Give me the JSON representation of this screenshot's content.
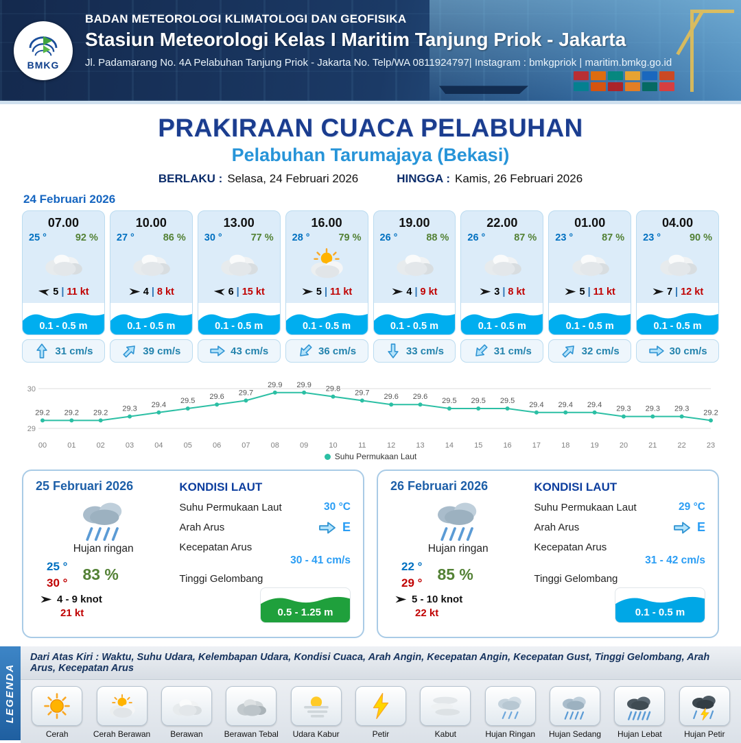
{
  "header": {
    "org": "BADAN METEOROLOGI KLIMATOLOGI DAN GEOFISIKA",
    "station": "Stasiun Meteorologi Kelas I Maritim Tanjung Priok - Jakarta",
    "address": "Jl. Padamarang No. 4A Pelabuhan Tanjung Priok - Jakarta No. Telp/WA 0811924797| Instagram : bmkgpriok | maritim.bmkg.go.id",
    "logo_label": "BMKG"
  },
  "title": {
    "main": "PRAKIRAAN CUACA PELABUHAN",
    "port": "Pelabuhan Tarumajaya (Bekasi)",
    "valid_from_label": "BERLAKU :",
    "valid_from": "Selasa, 24 Februari 2026",
    "valid_to_label": "HINGGA :",
    "valid_to": "Kamis, 26 Februari 2026"
  },
  "labels": {
    "sep": "|"
  },
  "forecast_date": "24 Februari 2026",
  "forecast_cards": [
    {
      "time": "07.00",
      "temp": "25 °",
      "humidity": "92 %",
      "weather_icon": "cloudy",
      "wind_dir_deg": 190,
      "wind_speed": "5",
      "gust": "11 kt",
      "wave": "0.1 - 0.5 m",
      "current_dir_deg": -90,
      "current_speed": "31 cm/s"
    },
    {
      "time": "10.00",
      "temp": "27 °",
      "humidity": "86 %",
      "weather_icon": "cloudy",
      "wind_dir_deg": 0,
      "wind_speed": "4",
      "gust": "8 kt",
      "wave": "0.1 - 0.5 m",
      "current_dir_deg": -45,
      "current_speed": "39 cm/s"
    },
    {
      "time": "13.00",
      "temp": "30 °",
      "humidity": "77 %",
      "weather_icon": "cloudy",
      "wind_dir_deg": 185,
      "wind_speed": "6",
      "gust": "15 kt",
      "wave": "0.1 - 0.5 m",
      "current_dir_deg": 0,
      "current_speed": "43 cm/s"
    },
    {
      "time": "16.00",
      "temp": "28 °",
      "humidity": "79 %",
      "weather_icon": "sun-cloud",
      "wind_dir_deg": 0,
      "wind_speed": "5",
      "gust": "11 kt",
      "wave": "0.1 - 0.5 m",
      "current_dir_deg": 135,
      "current_speed": "36 cm/s"
    },
    {
      "time": "19.00",
      "temp": "26 °",
      "humidity": "88 %",
      "weather_icon": "cloudy",
      "wind_dir_deg": 0,
      "wind_speed": "4",
      "gust": "9 kt",
      "wave": "0.1 - 0.5 m",
      "current_dir_deg": 90,
      "current_speed": "33 cm/s"
    },
    {
      "time": "22.00",
      "temp": "26 °",
      "humidity": "87 %",
      "weather_icon": "cloudy",
      "wind_dir_deg": 0,
      "wind_speed": "3",
      "gust": "8 kt",
      "wave": "0.1 - 0.5 m",
      "current_dir_deg": 135,
      "current_speed": "31 cm/s"
    },
    {
      "time": "01.00",
      "temp": "23 °",
      "humidity": "87 %",
      "weather_icon": "cloudy",
      "wind_dir_deg": 0,
      "wind_speed": "5",
      "gust": "11 kt",
      "wave": "0.1 - 0.5 m",
      "current_dir_deg": -45,
      "current_speed": "32 cm/s"
    },
    {
      "time": "04.00",
      "temp": "23 °",
      "humidity": "90 %",
      "weather_icon": "cloudy",
      "wind_dir_deg": 0,
      "wind_speed": "7",
      "gust": "12 kt",
      "wave": "0.1 - 0.5 m",
      "current_dir_deg": 0,
      "current_speed": "30 cm/s"
    }
  ],
  "chart_data": {
    "type": "line",
    "series_name": "Suhu Permukaan Laut",
    "x": [
      "00",
      "01",
      "02",
      "03",
      "04",
      "05",
      "06",
      "07",
      "08",
      "09",
      "10",
      "11",
      "12",
      "13",
      "14",
      "15",
      "16",
      "17",
      "18",
      "19",
      "20",
      "21",
      "22",
      "23"
    ],
    "values": [
      29.2,
      29.2,
      29.2,
      29.3,
      29.4,
      29.5,
      29.6,
      29.7,
      29.9,
      29.9,
      29.8,
      29.7,
      29.6,
      29.6,
      29.5,
      29.5,
      29.5,
      29.4,
      29.4,
      29.4,
      29.3,
      29.3,
      29.3,
      29.2
    ],
    "ylim": [
      29,
      30
    ],
    "line_color": "#2bbfa4",
    "grid": true,
    "legend_position": "bottom"
  },
  "day_cards": [
    {
      "date": "25 Februari 2026",
      "weather_icon": "rain-medium",
      "condition": "Hujan ringan",
      "temp_min": "25 °",
      "temp_max": "30 °",
      "humidity": "83 %",
      "wind": "4 - 9 knot",
      "gust": "21 kt",
      "sea": {
        "heading": "KONDISI LAUT",
        "sst_label": "Suhu Permukaan Laut",
        "sst": "30 °C",
        "current_dir_label": "Arah Arus",
        "current_dir": "E",
        "current_speed_label": "Kecepatan Arus",
        "current_speed": "30 - 41 cm/s",
        "wave_label": "Tinggi Gelombang",
        "wave": "0.5 - 1.25 m",
        "wave_color": "#1fa03c"
      }
    },
    {
      "date": "26 Februari 2026",
      "weather_icon": "rain-medium",
      "condition": "Hujan ringan",
      "temp_min": "22 °",
      "temp_max": "29 °",
      "humidity": "85 %",
      "wind": "5 - 10 knot",
      "gust": "22 kt",
      "sea": {
        "heading": "KONDISI LAUT",
        "sst_label": "Suhu Permukaan Laut",
        "sst": "29 °C",
        "current_dir_label": "Arah Arus",
        "current_dir": "E",
        "current_speed_label": "Kecepatan Arus",
        "current_speed": "31 - 42 cm/s",
        "wave_label": "Tinggi Gelombang",
        "wave": "0.1 - 0.5 m",
        "wave_color": "#00a7e6"
      }
    }
  ],
  "legend": {
    "title": "LEGENDA",
    "description": "Dari Atas Kiri : Waktu, Suhu Udara, Kelembapan Udara, Kondisi Cuaca, Arah Angin, Kecepatan Angin, Kecepatan Gust, Tinggi Gelombang, Arah Arus, Kecepatan Arus",
    "items": [
      {
        "label": "Cerah",
        "icon": "sun"
      },
      {
        "label": "Cerah Berawan",
        "icon": "sun-cloud"
      },
      {
        "label": "Berawan",
        "icon": "cloudy"
      },
      {
        "label": "Berawan Tebal",
        "icon": "cloud-thick"
      },
      {
        "label": "Udara Kabur",
        "icon": "haze"
      },
      {
        "label": "Petir",
        "icon": "lightning"
      },
      {
        "label": "Kabut",
        "icon": "fog"
      },
      {
        "label": "Hujan Ringan",
        "icon": "rain-light"
      },
      {
        "label": "Hujan Sedang",
        "icon": "rain-medium"
      },
      {
        "label": "Hujan Lebat",
        "icon": "rain-heavy"
      },
      {
        "label": "Hujan Petir",
        "icon": "storm"
      }
    ]
  }
}
